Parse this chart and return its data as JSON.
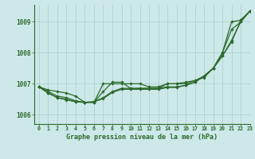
{
  "title": "Graphe pression niveau de la mer (hPa)",
  "background_color": "#cce8e8",
  "grid_color": "#aacccc",
  "line_color": "#2d6a2d",
  "marker_color": "#2d6a2d",
  "xlim": [
    -0.5,
    23
  ],
  "ylim": [
    1005.7,
    1009.55
  ],
  "yticks": [
    1006,
    1007,
    1008,
    1009
  ],
  "xticks": [
    0,
    1,
    2,
    3,
    4,
    5,
    6,
    7,
    8,
    9,
    10,
    11,
    12,
    13,
    14,
    15,
    16,
    17,
    18,
    19,
    20,
    21,
    22,
    23
  ],
  "series": [
    [
      1006.9,
      1006.8,
      1006.75,
      1006.7,
      1006.6,
      1006.4,
      1006.4,
      1007.0,
      1007.0,
      1007.0,
      1007.0,
      1007.0,
      1006.9,
      1006.9,
      1007.0,
      1007.0,
      1007.0,
      1007.1,
      1007.2,
      1007.5,
      1007.9,
      1008.4,
      1009.0,
      1009.35
    ],
    [
      1006.9,
      1006.75,
      1006.6,
      1006.55,
      1006.45,
      1006.4,
      1006.4,
      1006.75,
      1007.05,
      1007.05,
      1006.85,
      1006.85,
      1006.85,
      1006.85,
      1007.0,
      1007.0,
      1007.05,
      1007.1,
      1007.25,
      1007.5,
      1008.0,
      1009.0,
      1009.05,
      1009.35
    ],
    [
      1006.9,
      1006.7,
      1006.55,
      1006.5,
      1006.42,
      1006.4,
      1006.42,
      1006.55,
      1006.75,
      1006.85,
      1006.85,
      1006.85,
      1006.85,
      1006.85,
      1006.9,
      1006.9,
      1006.95,
      1007.05,
      1007.25,
      1007.5,
      1008.0,
      1008.75,
      1009.0,
      1009.35
    ],
    [
      1006.9,
      1006.7,
      1006.55,
      1006.48,
      1006.42,
      1006.4,
      1006.42,
      1006.52,
      1006.72,
      1006.82,
      1006.82,
      1006.82,
      1006.82,
      1006.82,
      1006.88,
      1006.88,
      1006.95,
      1007.05,
      1007.25,
      1007.5,
      1007.9,
      1008.35,
      1009.05,
      1009.35
    ]
  ]
}
